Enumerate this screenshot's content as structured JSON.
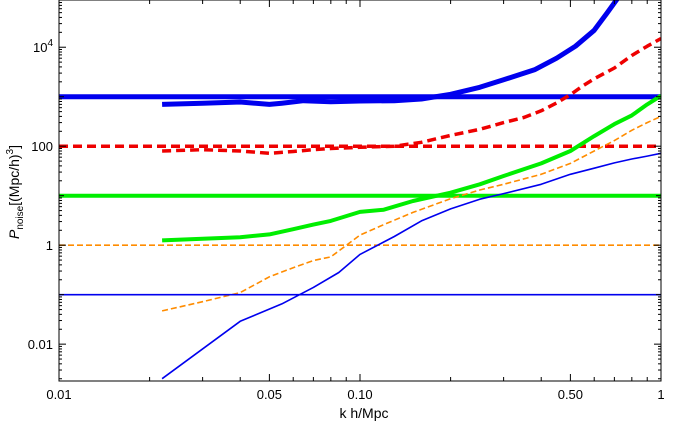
{
  "chart_data": {
    "type": "line",
    "title": "",
    "xlabel": "k h/Mpc",
    "ylabel": {
      "main": "P",
      "sub": "noise",
      "rest": "[(Mpc/h)",
      "sup": "3",
      "close": "]"
    },
    "x_scale": "log",
    "y_scale": "log",
    "xlim": [
      0.01,
      1.0
    ],
    "ylim": [
      0.0018,
      90000
    ],
    "grid": false,
    "x_ticks": [
      {
        "value": 0.01,
        "label": "0.01"
      },
      {
        "value": 0.05,
        "label": "0.05"
      },
      {
        "value": 0.1,
        "label": "0.10"
      },
      {
        "value": 0.5,
        "label": "0.50"
      },
      {
        "value": 1.0,
        "label": "1"
      }
    ],
    "y_ticks": [
      {
        "value": 0.01,
        "label": "0.01"
      },
      {
        "value": 1,
        "label": "1"
      },
      {
        "value": 100,
        "label": "100"
      },
      {
        "value": 10000,
        "label": "10",
        "sup": "4"
      }
    ],
    "series": [
      {
        "color": "#0000ee",
        "width": 5,
        "dash": "none",
        "x": [
          0.01,
          1.0
        ],
        "y": [
          1000,
          1000
        ]
      },
      {
        "color": "#0000ee",
        "width": 5,
        "dash": "none",
        "x": [
          0.022,
          0.03,
          0.04,
          0.05,
          0.055,
          0.065,
          0.08,
          0.1,
          0.13,
          0.16,
          0.2,
          0.25,
          0.3,
          0.38,
          0.45,
          0.52,
          0.6,
          0.66,
          0.72
        ],
        "y": [
          700,
          740,
          780,
          700,
          740,
          830,
          790,
          820,
          830,
          900,
          1120,
          1550,
          2200,
          3500,
          6000,
          10500,
          22000,
          48000,
          100000
        ]
      },
      {
        "color": "#ee0000",
        "width": 3.5,
        "dash": "9,5",
        "x": [
          0.01,
          1.0
        ],
        "y": [
          100,
          100
        ]
      },
      {
        "color": "#ee0000",
        "width": 3.5,
        "dash": "9,5",
        "x": [
          0.022,
          0.03,
          0.04,
          0.05,
          0.06,
          0.07,
          0.08,
          0.1,
          0.13,
          0.16,
          0.2,
          0.25,
          0.3,
          0.35,
          0.4,
          0.45,
          0.5,
          0.55,
          0.6,
          0.7,
          0.8,
          0.9,
          1.0
        ],
        "y": [
          80,
          85,
          80,
          72,
          78,
          85,
          90,
          95,
          100,
          120,
          165,
          220,
          300,
          380,
          520,
          750,
          1100,
          1650,
          2300,
          3800,
          6800,
          10500,
          15000
        ]
      },
      {
        "color": "#00ee00",
        "width": 4,
        "dash": "none",
        "x": [
          0.01,
          1.0
        ],
        "y": [
          10,
          10
        ]
      },
      {
        "color": "#00ee00",
        "width": 4,
        "dash": "none",
        "x": [
          0.022,
          0.03,
          0.04,
          0.05,
          0.06,
          0.07,
          0.08,
          0.1,
          0.12,
          0.15,
          0.2,
          0.25,
          0.3,
          0.4,
          0.5,
          0.6,
          0.7,
          0.8,
          0.9,
          1.0
        ],
        "y": [
          1.25,
          1.35,
          1.45,
          1.65,
          2.1,
          2.6,
          3.1,
          4.7,
          5.2,
          7.8,
          11.5,
          17,
          25,
          45,
          80,
          160,
          280,
          420,
          700,
          1050
        ]
      },
      {
        "color": "#ff8c00",
        "width": 1.6,
        "dash": "6,3",
        "x": [
          0.01,
          1.0
        ],
        "y": [
          1,
          1
        ]
      },
      {
        "color": "#ff8c00",
        "width": 1.6,
        "dash": "6,3",
        "x": [
          0.022,
          0.03,
          0.04,
          0.05,
          0.06,
          0.07,
          0.08,
          0.1,
          0.12,
          0.15,
          0.2,
          0.25,
          0.3,
          0.4,
          0.5,
          0.6,
          0.7,
          0.8,
          0.9,
          1.0
        ],
        "y": [
          0.047,
          0.072,
          0.11,
          0.23,
          0.35,
          0.49,
          0.58,
          1.6,
          2.6,
          4.6,
          8.7,
          13,
          17,
          27,
          45,
          80,
          130,
          210,
          300,
          400
        ]
      },
      {
        "color": "#0000ee",
        "width": 1.6,
        "dash": "none",
        "x": [
          0.01,
          1.0
        ],
        "y": [
          0.1,
          0.1
        ]
      },
      {
        "color": "#0000ee",
        "width": 1.6,
        "dash": "none",
        "x": [
          0.022,
          0.04,
          0.055,
          0.07,
          0.085,
          0.1,
          0.13,
          0.16,
          0.2,
          0.25,
          0.3,
          0.4,
          0.5,
          0.6,
          0.7,
          0.8,
          0.9,
          1.0
        ],
        "y": [
          0.002,
          0.029,
          0.065,
          0.14,
          0.28,
          0.65,
          1.5,
          3.1,
          5.4,
          8.5,
          11,
          17,
          27,
          36,
          46,
          55,
          63,
          72
        ]
      }
    ]
  }
}
